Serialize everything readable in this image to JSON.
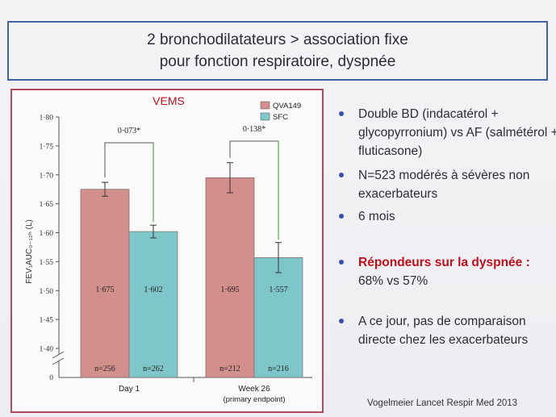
{
  "title": {
    "line1": "2 bronchodilatateurs > association fixe",
    "line2": "pour fonction respiratoire, dyspnée"
  },
  "chart_data": {
    "type": "bar",
    "title": "VEMS",
    "ylabel": "FEV₁AUC₀₋₁₂ₕ (L)",
    "ylim": [
      1.4,
      1.8
    ],
    "yticks": [
      "1·40",
      "1·45",
      "1·50",
      "1·55",
      "1·60",
      "1·65",
      "1·70",
      "1·75",
      "1·80"
    ],
    "y_zero_label": "0",
    "categories": [
      "Day 1",
      "Week 26"
    ],
    "category_sublabels": [
      "",
      "(primary endpoint)"
    ],
    "series": [
      {
        "name": "QVA149",
        "color": "#d28f8b",
        "values": [
          1.675,
          1.695
        ],
        "value_labels": [
          "1·675",
          "1·695"
        ],
        "n_labels": [
          "n=256",
          "n=212"
        ],
        "err": [
          0.012,
          0.026
        ]
      },
      {
        "name": "SFC",
        "color": "#7fc6cb",
        "values": [
          1.602,
          1.557
        ],
        "value_labels": [
          "1·602",
          "1·557"
        ],
        "n_labels": [
          "n=262",
          "n=216"
        ],
        "err": [
          0.011,
          0.026
        ]
      }
    ],
    "differences": [
      "0·073*",
      "0·138*"
    ],
    "legend": "top-right"
  },
  "bullets": [
    {
      "text": "Double BD (indacatérol + glycopyrronium) vs AF (salmétérol + fluticasone)"
    },
    {
      "text": "N=523 modérés à sévères non exacerbateurs"
    },
    {
      "text": "6 mois"
    },
    {
      "highlight": "Répondeurs sur la dyspnée :",
      "text": "68% vs 57%"
    },
    {
      "text": "A ce jour, pas de comparaison directe chez les exacerbateurs"
    }
  ],
  "source": "Vogelmeier Lancet Respir Med 2013"
}
